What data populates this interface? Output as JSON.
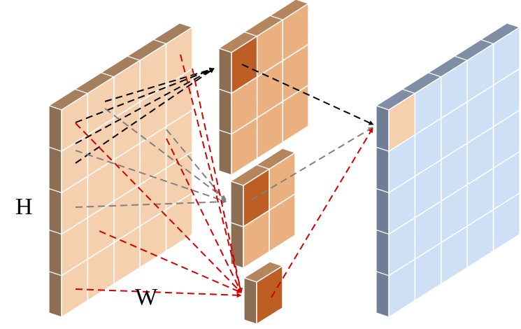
{
  "labels": {
    "height": "H",
    "width": "W"
  },
  "colors": {
    "input_face": "#f4d0ae",
    "input_side": "#8c6e55",
    "input_top": "#a57e5d",
    "kernel_face": "#ebb07f",
    "kernel_side": "#8c6e55",
    "kernel_top": "#b5865e",
    "kernel_highlight": "#bd5f24",
    "output_face": "#cde0f5",
    "output_side": "#6e7f95",
    "output_top": "#7e8fa5",
    "output_highlight": "#f4d0ae",
    "grid_line": "#ffffff",
    "arrow_black": "#000000",
    "arrow_gray": "#808080",
    "arrow_red": "#d40000"
  },
  "blocks": [
    {
      "name": "input-feature-map",
      "grid": [
        5,
        5
      ]
    },
    {
      "name": "kernel-3x3",
      "grid": [
        3,
        3
      ]
    },
    {
      "name": "kernel-2x2",
      "grid": [
        2,
        2
      ]
    },
    {
      "name": "kernel-1x1",
      "grid": [
        1,
        1
      ]
    },
    {
      "name": "output-feature-map",
      "grid": [
        5,
        5
      ]
    }
  ]
}
